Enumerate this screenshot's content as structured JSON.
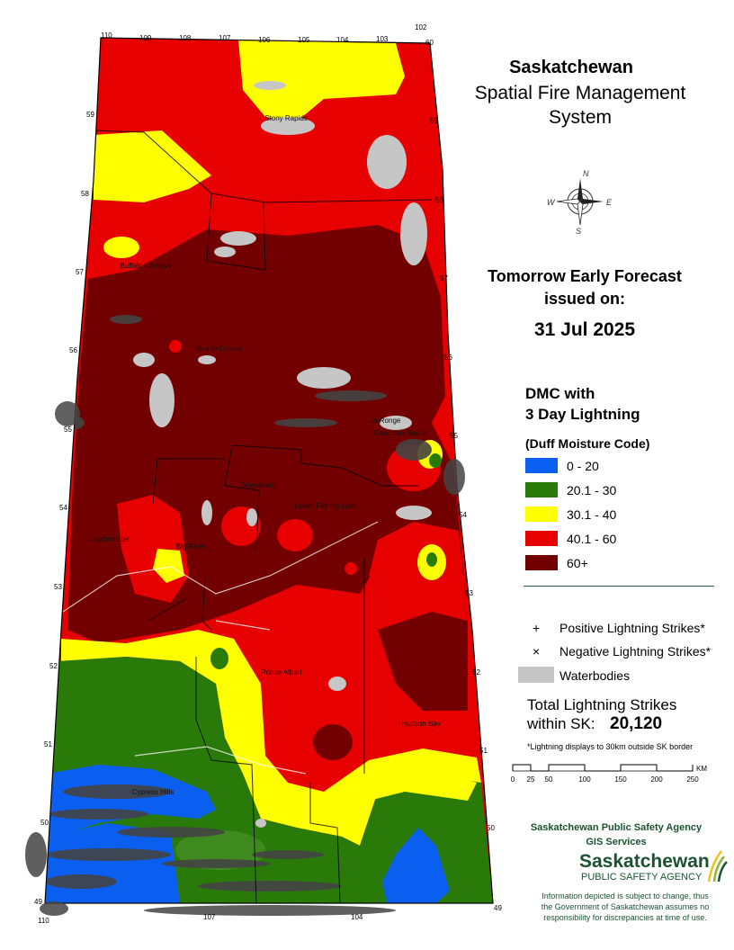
{
  "title": {
    "line1": "Saskatchewan",
    "line2": "Spatial Fire Management",
    "line3": "System"
  },
  "forecast": {
    "line1": "Tomorrow Early Forecast",
    "line2": "issued on:",
    "date": "31 Jul 2025"
  },
  "legend": {
    "heading1": "DMC with",
    "heading2": "3 Day Lightning",
    "subheading": "(Duff Moisture Code)",
    "classes": [
      {
        "label": "0 - 20",
        "color": "#0a5ff0"
      },
      {
        "label": "20.1 - 30",
        "color": "#2a7a0a"
      },
      {
        "label": "30.1 - 40",
        "color": "#ffff00"
      },
      {
        "label": "40.1 - 60",
        "color": "#e60000"
      },
      {
        "label": "60+",
        "color": "#730000"
      }
    ],
    "positive_symbol": "+",
    "positive_label": "Positive Lightning Strikes*",
    "negative_symbol": "×",
    "negative_label": "Negative Lightning Strikes*",
    "waterbodies_label": "Waterbodies",
    "waterbody_color": "#c6c6c6"
  },
  "totals": {
    "line1": "Total Lightning Strikes",
    "line2": "within SK:",
    "value": "20,120",
    "note": "*Lightning displays to 30km outside SK border"
  },
  "scale": {
    "ticks": [
      "0",
      "25",
      "50",
      "100",
      "150",
      "200",
      "250"
    ],
    "unit": "KM"
  },
  "agency": {
    "line1": "Saskatchewan Public Safety Agency",
    "line2": "GIS  Services",
    "logo_word": "Saskatchewan",
    "logo_sub": "PUBLIC SAFETY AGENCY"
  },
  "disclaimer": [
    "Information depicted is subject to change, thus",
    "the Government of Saskatchewan assumes no",
    "responsibility for discrepancies at time of use."
  ],
  "compass": {
    "n": "N",
    "e": "E",
    "s": "S",
    "w": "W"
  },
  "map": {
    "longitudes_top": [
      "110",
      "109",
      "108",
      "107",
      "106",
      "105",
      "104",
      "103",
      "102"
    ],
    "latitudes_left": [
      "59",
      "58",
      "57",
      "56",
      "55",
      "54",
      "53",
      "52",
      "51",
      "50",
      "49"
    ],
    "latitudes_right": [
      "60",
      "59",
      "58",
      "57",
      "56",
      "55",
      "54",
      "53",
      "52",
      "51",
      "50",
      "49"
    ],
    "bottom_longitudes": [
      "110",
      "107",
      "104"
    ],
    "places": [
      "Stony Rapids",
      "Buffalo Narrows",
      "Ile-a-la-Crosse",
      "La Ronge",
      "Creighton Beach",
      "Weyakwin",
      "Lower Fishing Lake",
      "Big River",
      "Lloydminster",
      "Prince Albert",
      "Hudson Bay",
      "Cypress Hills"
    ]
  }
}
